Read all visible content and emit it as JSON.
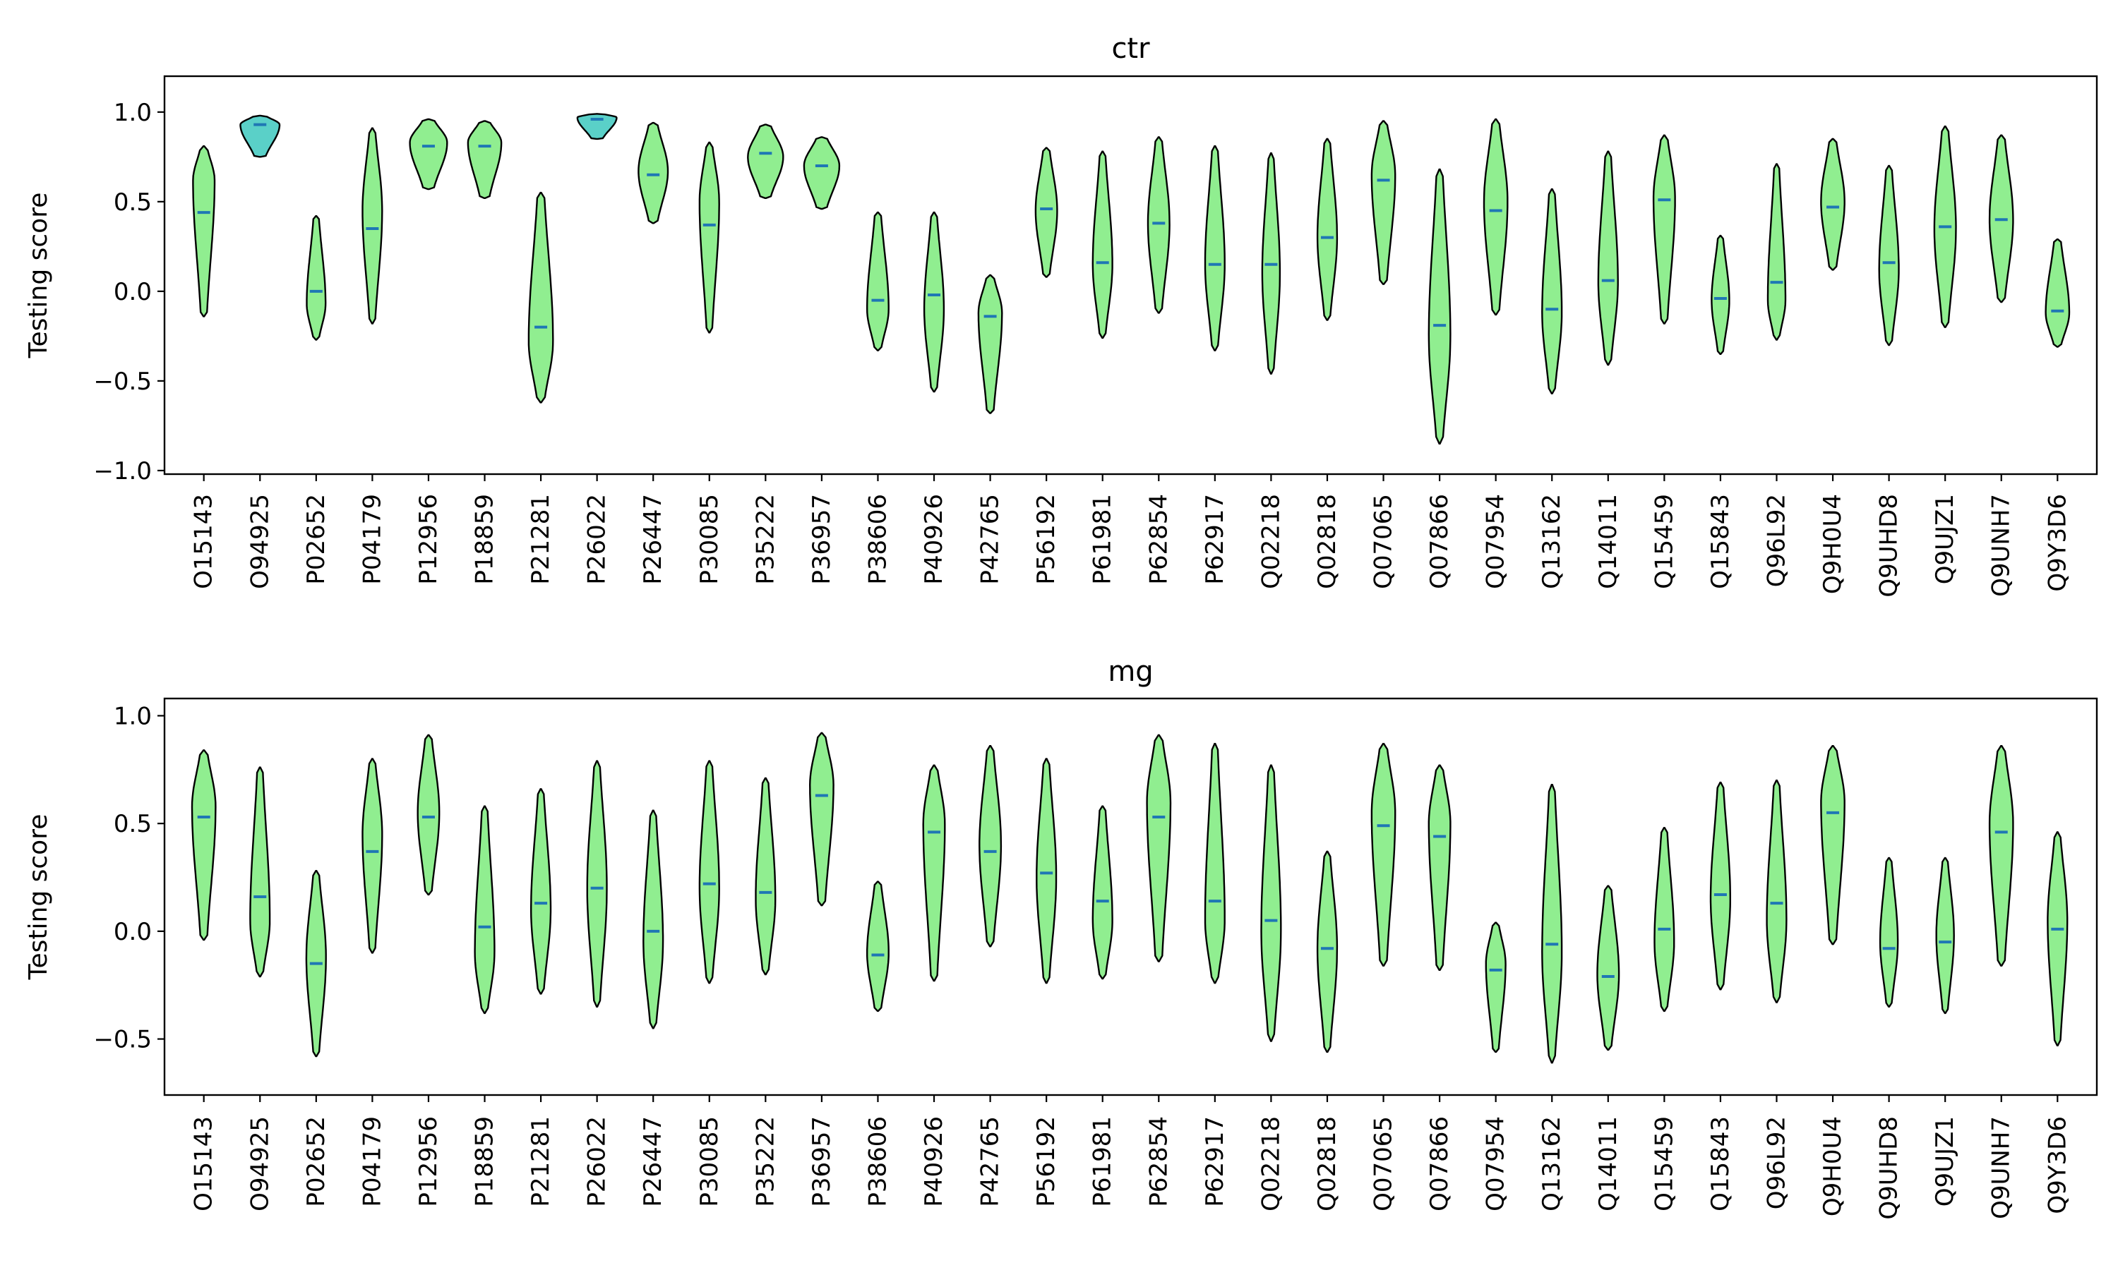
{
  "chart_data": [
    {
      "type": "violin",
      "title": "ctr",
      "ylabel": "Testing score",
      "xlabel": "",
      "ylim": [
        -1.02,
        1.2
      ],
      "yticks": [
        -1.0,
        -0.5,
        0.0,
        0.5,
        1.0
      ],
      "ytick_labels": [
        "−1.0",
        "−0.5",
        "0.0",
        "0.5",
        "1.0"
      ],
      "grid": false,
      "body_color": "#90ee90",
      "edge_color": "#000000",
      "median_color": "#1f77b4",
      "highlight_color": "#5ad0c8",
      "categories": [
        "O15143",
        "O94925",
        "P02652",
        "P04179",
        "P12956",
        "P18859",
        "P21281",
        "P26022",
        "P26447",
        "P30085",
        "P35222",
        "P36957",
        "P38606",
        "P40926",
        "P42765",
        "P56192",
        "P61981",
        "P62854",
        "P62917",
        "Q02218",
        "Q02818",
        "Q07065",
        "Q07866",
        "Q07954",
        "Q13162",
        "Q14011",
        "Q15459",
        "Q15843",
        "Q96L92",
        "Q9H0U4",
        "Q9UHD8",
        "Q9UJZ1",
        "Q9UNH7",
        "Q9Y3D6"
      ],
      "violins": [
        {
          "min": -0.14,
          "max": 0.81,
          "median": 0.44,
          "peak": 0.62,
          "hw": 0.55,
          "skew": 0.0
        },
        {
          "min": 0.75,
          "max": 0.98,
          "median": 0.93,
          "peak": 0.93,
          "hw": 1.0,
          "skew": 0.6,
          "highlight": true
        },
        {
          "min": -0.27,
          "max": 0.42,
          "median": 0.0,
          "peak": -0.07,
          "hw": 0.48,
          "skew": 0.0
        },
        {
          "min": -0.18,
          "max": 0.91,
          "median": 0.35,
          "peak": 0.45,
          "hw": 0.5,
          "skew": 0.0
        },
        {
          "min": 0.57,
          "max": 0.96,
          "median": 0.81,
          "peak": 0.83,
          "hw": 0.95,
          "skew": 0.0
        },
        {
          "min": 0.52,
          "max": 0.95,
          "median": 0.81,
          "peak": 0.83,
          "hw": 0.85,
          "skew": 0.0
        },
        {
          "min": -0.62,
          "max": 0.55,
          "median": -0.2,
          "peak": -0.28,
          "hw": 0.62,
          "skew": 0.0
        },
        {
          "min": 0.85,
          "max": 0.99,
          "median": 0.96,
          "peak": 0.97,
          "hw": 1.0,
          "skew": 0.6,
          "highlight": true
        },
        {
          "min": 0.38,
          "max": 0.94,
          "median": 0.65,
          "peak": 0.67,
          "hw": 0.75,
          "skew": 0.0
        },
        {
          "min": -0.23,
          "max": 0.83,
          "median": 0.37,
          "peak": 0.5,
          "hw": 0.5,
          "skew": 0.0
        },
        {
          "min": 0.52,
          "max": 0.93,
          "median": 0.77,
          "peak": 0.75,
          "hw": 0.9,
          "skew": 0.0
        },
        {
          "min": 0.46,
          "max": 0.86,
          "median": 0.7,
          "peak": 0.7,
          "hw": 0.9,
          "skew": 0.0
        },
        {
          "min": -0.33,
          "max": 0.44,
          "median": -0.05,
          "peak": -0.1,
          "hw": 0.55,
          "skew": 0.0
        },
        {
          "min": -0.56,
          "max": 0.44,
          "median": -0.02,
          "peak": -0.1,
          "hw": 0.5,
          "skew": 0.0
        },
        {
          "min": -0.68,
          "max": 0.09,
          "median": -0.14,
          "peak": -0.12,
          "hw": 0.6,
          "skew": 0.0
        },
        {
          "min": 0.08,
          "max": 0.8,
          "median": 0.46,
          "peak": 0.45,
          "hw": 0.55,
          "skew": 0.0
        },
        {
          "min": -0.26,
          "max": 0.78,
          "median": 0.16,
          "peak": 0.15,
          "hw": 0.5,
          "skew": 0.0
        },
        {
          "min": -0.12,
          "max": 0.86,
          "median": 0.38,
          "peak": 0.38,
          "hw": 0.55,
          "skew": 0.0
        },
        {
          "min": -0.33,
          "max": 0.81,
          "median": 0.15,
          "peak": 0.15,
          "hw": 0.5,
          "skew": 0.0
        },
        {
          "min": -0.46,
          "max": 0.77,
          "median": 0.15,
          "peak": 0.1,
          "hw": 0.45,
          "skew": 0.0
        },
        {
          "min": -0.16,
          "max": 0.85,
          "median": 0.3,
          "peak": 0.3,
          "hw": 0.5,
          "skew": 0.0
        },
        {
          "min": 0.04,
          "max": 0.95,
          "median": 0.62,
          "peak": 0.65,
          "hw": 0.6,
          "skew": 0.0
        },
        {
          "min": -0.85,
          "max": 0.68,
          "median": -0.19,
          "peak": -0.25,
          "hw": 0.55,
          "skew": 0.0
        },
        {
          "min": -0.13,
          "max": 0.96,
          "median": 0.45,
          "peak": 0.5,
          "hw": 0.6,
          "skew": 0.0
        },
        {
          "min": -0.57,
          "max": 0.57,
          "median": -0.1,
          "peak": -0.12,
          "hw": 0.5,
          "skew": 0.0
        },
        {
          "min": -0.41,
          "max": 0.78,
          "median": 0.06,
          "peak": 0.05,
          "hw": 0.5,
          "skew": 0.0
        },
        {
          "min": -0.18,
          "max": 0.87,
          "median": 0.51,
          "peak": 0.52,
          "hw": 0.55,
          "skew": 0.0
        },
        {
          "min": -0.35,
          "max": 0.31,
          "median": -0.04,
          "peak": -0.05,
          "hw": 0.45,
          "skew": 0.0
        },
        {
          "min": -0.27,
          "max": 0.71,
          "median": 0.05,
          "peak": -0.05,
          "hw": 0.45,
          "skew": 0.0
        },
        {
          "min": 0.12,
          "max": 0.85,
          "median": 0.47,
          "peak": 0.5,
          "hw": 0.6,
          "skew": 0.0
        },
        {
          "min": -0.3,
          "max": 0.7,
          "median": 0.16,
          "peak": 0.12,
          "hw": 0.5,
          "skew": 0.0
        },
        {
          "min": -0.2,
          "max": 0.92,
          "median": 0.36,
          "peak": 0.35,
          "hw": 0.55,
          "skew": 0.0
        },
        {
          "min": -0.06,
          "max": 0.87,
          "median": 0.4,
          "peak": 0.4,
          "hw": 0.6,
          "skew": 0.0
        },
        {
          "min": -0.31,
          "max": 0.29,
          "median": -0.11,
          "peak": -0.12,
          "hw": 0.6,
          "skew": 0.0
        }
      ]
    },
    {
      "type": "violin",
      "title": "mg",
      "ylabel": "Testing score",
      "xlabel": "",
      "ylim": [
        -0.76,
        1.08
      ],
      "yticks": [
        -0.5,
        0.0,
        0.5,
        1.0
      ],
      "ytick_labels": [
        "−0.5",
        "0.0",
        "0.5",
        "1.0"
      ],
      "grid": false,
      "body_color": "#90ee90",
      "edge_color": "#000000",
      "median_color": "#1f77b4",
      "categories": [
        "O15143",
        "O94925",
        "P02652",
        "P04179",
        "P12956",
        "P18859",
        "P21281",
        "P26022",
        "P26447",
        "P30085",
        "P35222",
        "P36957",
        "P38606",
        "P40926",
        "P42765",
        "P56192",
        "P61981",
        "P62854",
        "P62917",
        "Q02218",
        "Q02818",
        "Q07065",
        "Q07866",
        "Q07954",
        "Q13162",
        "Q14011",
        "Q15459",
        "Q15843",
        "Q96L92",
        "Q9H0U4",
        "Q9UHD8",
        "Q9UJZ1",
        "Q9UNH7",
        "Q9Y3D6"
      ],
      "violins": [
        {
          "min": -0.04,
          "max": 0.84,
          "median": 0.53,
          "peak": 0.58,
          "hw": 0.6,
          "skew": 0.0
        },
        {
          "min": -0.21,
          "max": 0.76,
          "median": 0.16,
          "peak": 0.05,
          "hw": 0.5,
          "skew": -0.4
        },
        {
          "min": -0.58,
          "max": 0.28,
          "median": -0.15,
          "peak": -0.12,
          "hw": 0.5,
          "skew": 0.0
        },
        {
          "min": -0.1,
          "max": 0.8,
          "median": 0.37,
          "peak": 0.45,
          "hw": 0.5,
          "skew": 0.0
        },
        {
          "min": 0.17,
          "max": 0.91,
          "median": 0.53,
          "peak": 0.55,
          "hw": 0.55,
          "skew": 0.0
        },
        {
          "min": -0.38,
          "max": 0.58,
          "median": 0.02,
          "peak": -0.1,
          "hw": 0.5,
          "skew": 0.0
        },
        {
          "min": -0.29,
          "max": 0.66,
          "median": 0.13,
          "peak": 0.1,
          "hw": 0.5,
          "skew": 0.0
        },
        {
          "min": -0.35,
          "max": 0.79,
          "median": 0.2,
          "peak": 0.2,
          "hw": 0.5,
          "skew": 0.0
        },
        {
          "min": -0.45,
          "max": 0.56,
          "median": 0.0,
          "peak": -0.05,
          "hw": 0.5,
          "skew": 0.0
        },
        {
          "min": -0.24,
          "max": 0.79,
          "median": 0.22,
          "peak": 0.2,
          "hw": 0.5,
          "skew": 0.0
        },
        {
          "min": -0.2,
          "max": 0.71,
          "median": 0.18,
          "peak": 0.15,
          "hw": 0.5,
          "skew": 0.0
        },
        {
          "min": 0.12,
          "max": 0.92,
          "median": 0.63,
          "peak": 0.68,
          "hw": 0.6,
          "skew": 0.0
        },
        {
          "min": -0.37,
          "max": 0.23,
          "median": -0.11,
          "peak": -0.1,
          "hw": 0.55,
          "skew": 0.0
        },
        {
          "min": -0.23,
          "max": 0.77,
          "median": 0.46,
          "peak": 0.5,
          "hw": 0.55,
          "skew": 0.0
        },
        {
          "min": -0.07,
          "max": 0.86,
          "median": 0.37,
          "peak": 0.4,
          "hw": 0.55,
          "skew": 0.0
        },
        {
          "min": -0.24,
          "max": 0.8,
          "median": 0.27,
          "peak": 0.25,
          "hw": 0.5,
          "skew": 0.0
        },
        {
          "min": -0.22,
          "max": 0.58,
          "median": 0.14,
          "peak": 0.05,
          "hw": 0.5,
          "skew": 0.0
        },
        {
          "min": -0.14,
          "max": 0.91,
          "median": 0.53,
          "peak": 0.6,
          "hw": 0.6,
          "skew": 0.0
        },
        {
          "min": -0.24,
          "max": 0.87,
          "median": 0.14,
          "peak": 0.05,
          "hw": 0.5,
          "skew": 0.0
        },
        {
          "min": -0.51,
          "max": 0.77,
          "median": 0.05,
          "peak": 0.0,
          "hw": 0.5,
          "skew": 0.0
        },
        {
          "min": -0.56,
          "max": 0.37,
          "median": -0.08,
          "peak": -0.08,
          "hw": 0.5,
          "skew": 0.0
        },
        {
          "min": -0.16,
          "max": 0.87,
          "median": 0.49,
          "peak": 0.55,
          "hw": 0.6,
          "skew": 0.0
        },
        {
          "min": -0.18,
          "max": 0.77,
          "median": 0.44,
          "peak": 0.5,
          "hw": 0.55,
          "skew": 0.0
        },
        {
          "min": -0.56,
          "max": 0.04,
          "median": -0.18,
          "peak": -0.15,
          "hw": 0.5,
          "skew": 0.0
        },
        {
          "min": -0.61,
          "max": 0.68,
          "median": -0.06,
          "peak": -0.1,
          "hw": 0.5,
          "skew": 0.0
        },
        {
          "min": -0.55,
          "max": 0.21,
          "median": -0.21,
          "peak": -0.2,
          "hw": 0.55,
          "skew": 0.0
        },
        {
          "min": -0.37,
          "max": 0.48,
          "median": 0.01,
          "peak": -0.05,
          "hw": 0.5,
          "skew": 0.0
        },
        {
          "min": -0.27,
          "max": 0.69,
          "median": 0.17,
          "peak": 0.15,
          "hw": 0.5,
          "skew": 0.0
        },
        {
          "min": -0.33,
          "max": 0.7,
          "median": 0.13,
          "peak": 0.05,
          "hw": 0.5,
          "skew": 0.0
        },
        {
          "min": -0.06,
          "max": 0.86,
          "median": 0.55,
          "peak": 0.6,
          "hw": 0.6,
          "skew": 0.0
        },
        {
          "min": -0.35,
          "max": 0.34,
          "median": -0.08,
          "peak": -0.05,
          "hw": 0.45,
          "skew": 0.0
        },
        {
          "min": -0.38,
          "max": 0.34,
          "median": -0.05,
          "peak": -0.02,
          "hw": 0.45,
          "skew": 0.0
        },
        {
          "min": -0.16,
          "max": 0.86,
          "median": 0.46,
          "peak": 0.5,
          "hw": 0.6,
          "skew": 0.0
        },
        {
          "min": -0.53,
          "max": 0.46,
          "median": 0.01,
          "peak": 0.05,
          "hw": 0.5,
          "skew": 0.0
        }
      ]
    }
  ]
}
